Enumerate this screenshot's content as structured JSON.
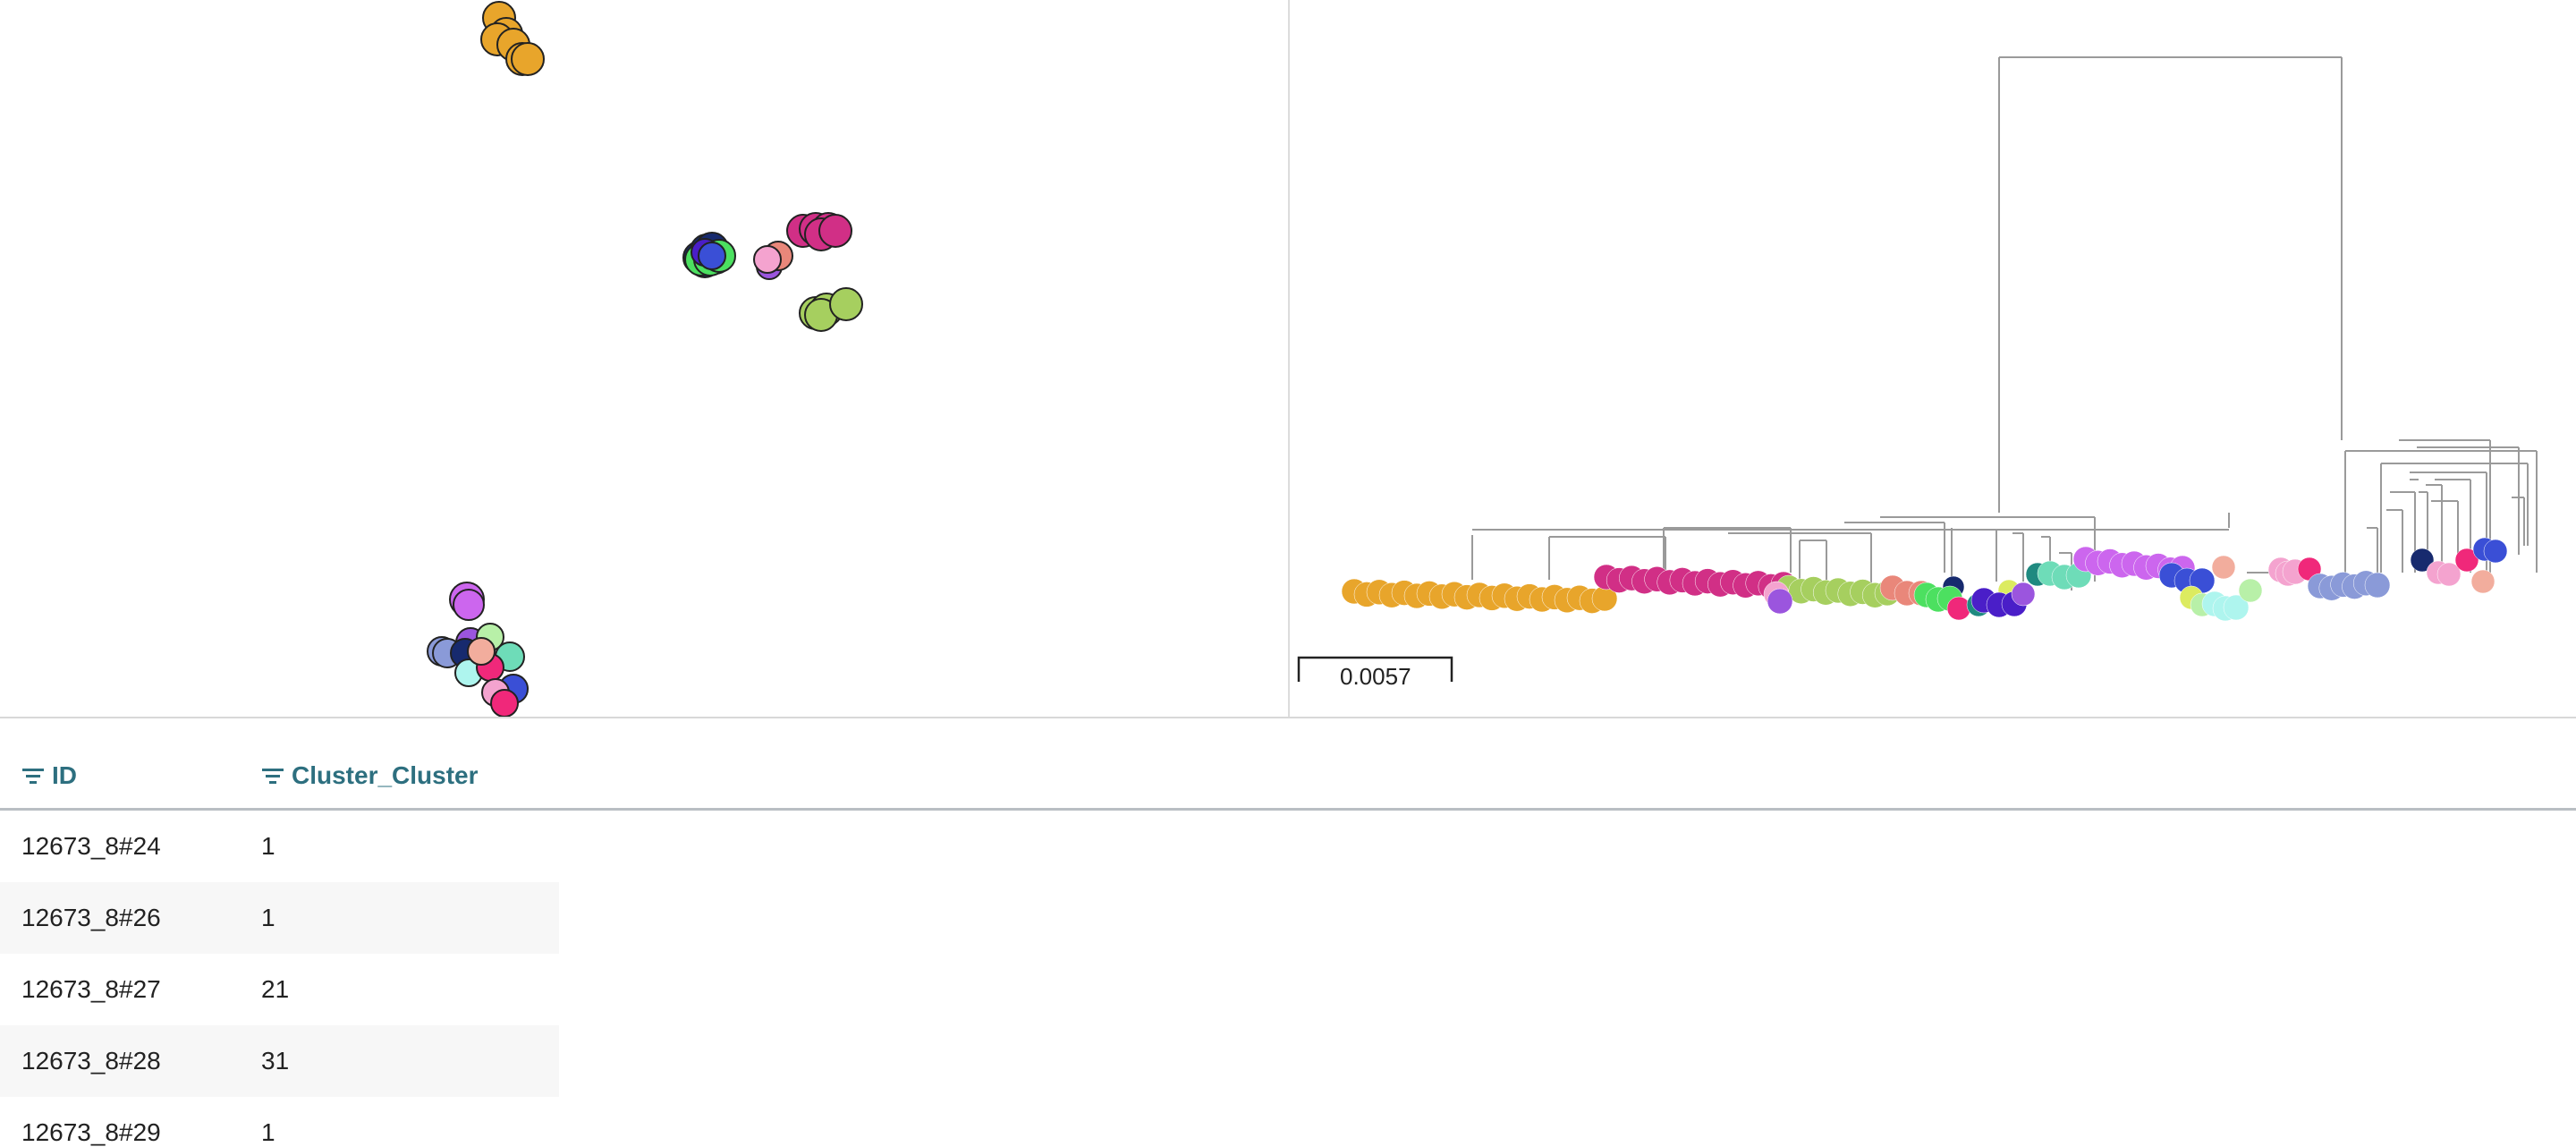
{
  "tree": {
    "scale_bar_label": "0.0057"
  },
  "table": {
    "columns": [
      {
        "label": "ID",
        "icon": "filter-icon"
      },
      {
        "label": "Cluster_Cluster",
        "icon": "filter-icon"
      }
    ],
    "rows": [
      {
        "id": "12673_8#24",
        "cluster": "1"
      },
      {
        "id": "12673_8#26",
        "cluster": "1"
      },
      {
        "id": "12673_8#27",
        "cluster": "21"
      },
      {
        "id": "12673_8#28",
        "cluster": "31"
      },
      {
        "id": "12673_8#29",
        "cluster": "1"
      }
    ]
  },
  "colors": {
    "cluster_gold": "#e8a52b",
    "cluster_magenta": "#d12f86",
    "cluster_yellowgreen": "#a6cf5f",
    "cluster_violet": "#cc66ee",
    "cluster_blue": "#3a4fd6",
    "cluster_periwinkle": "#8a9ad8",
    "cluster_teal": "#1f8a80",
    "cluster_aquamarine": "#6edcb8",
    "cluster_green": "#4ce060",
    "cluster_navy": "#172a6e",
    "cluster_indigo": "#4a1ec8",
    "cluster_pink": "#f4a3cf",
    "cluster_salmon": "#e9877a",
    "cluster_hotpink": "#f0287a",
    "cluster_lightcyan": "#aef5ee",
    "cluster_lightgreen": "#b8f0a8",
    "cluster_peach": "#f2ad9d",
    "cluster_lime": "#dceb60",
    "cluster_purple": "#9b55de",
    "header_text": "#2d6f7f"
  }
}
